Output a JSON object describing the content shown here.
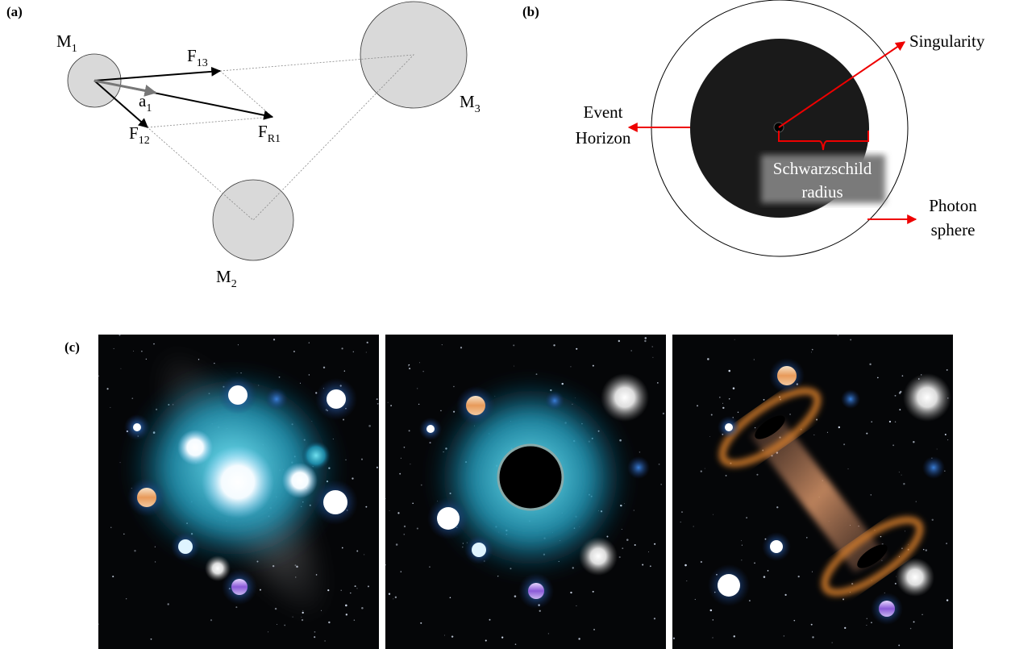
{
  "panel_a": {
    "label": "(a)",
    "masses": [
      {
        "base": "M",
        "sub": "1"
      },
      {
        "base": "M",
        "sub": "2"
      },
      {
        "base": "M",
        "sub": "3"
      }
    ],
    "forces": [
      {
        "base": "F",
        "sub": "13"
      },
      {
        "base": "F",
        "sub": "12"
      },
      {
        "base": "F",
        "sub": "R1"
      }
    ],
    "acceleration": {
      "base": "a",
      "sub": "1"
    }
  },
  "panel_b": {
    "label": "(b)",
    "singularity": "Singularity",
    "event_horizon": [
      "Event",
      "Horizon"
    ],
    "schwarzschild_radius": [
      "Schwarzschild",
      "radius"
    ],
    "photon_sphere": [
      "Photon",
      "sphere"
    ]
  },
  "panel_c": {
    "label": "(c)"
  }
}
